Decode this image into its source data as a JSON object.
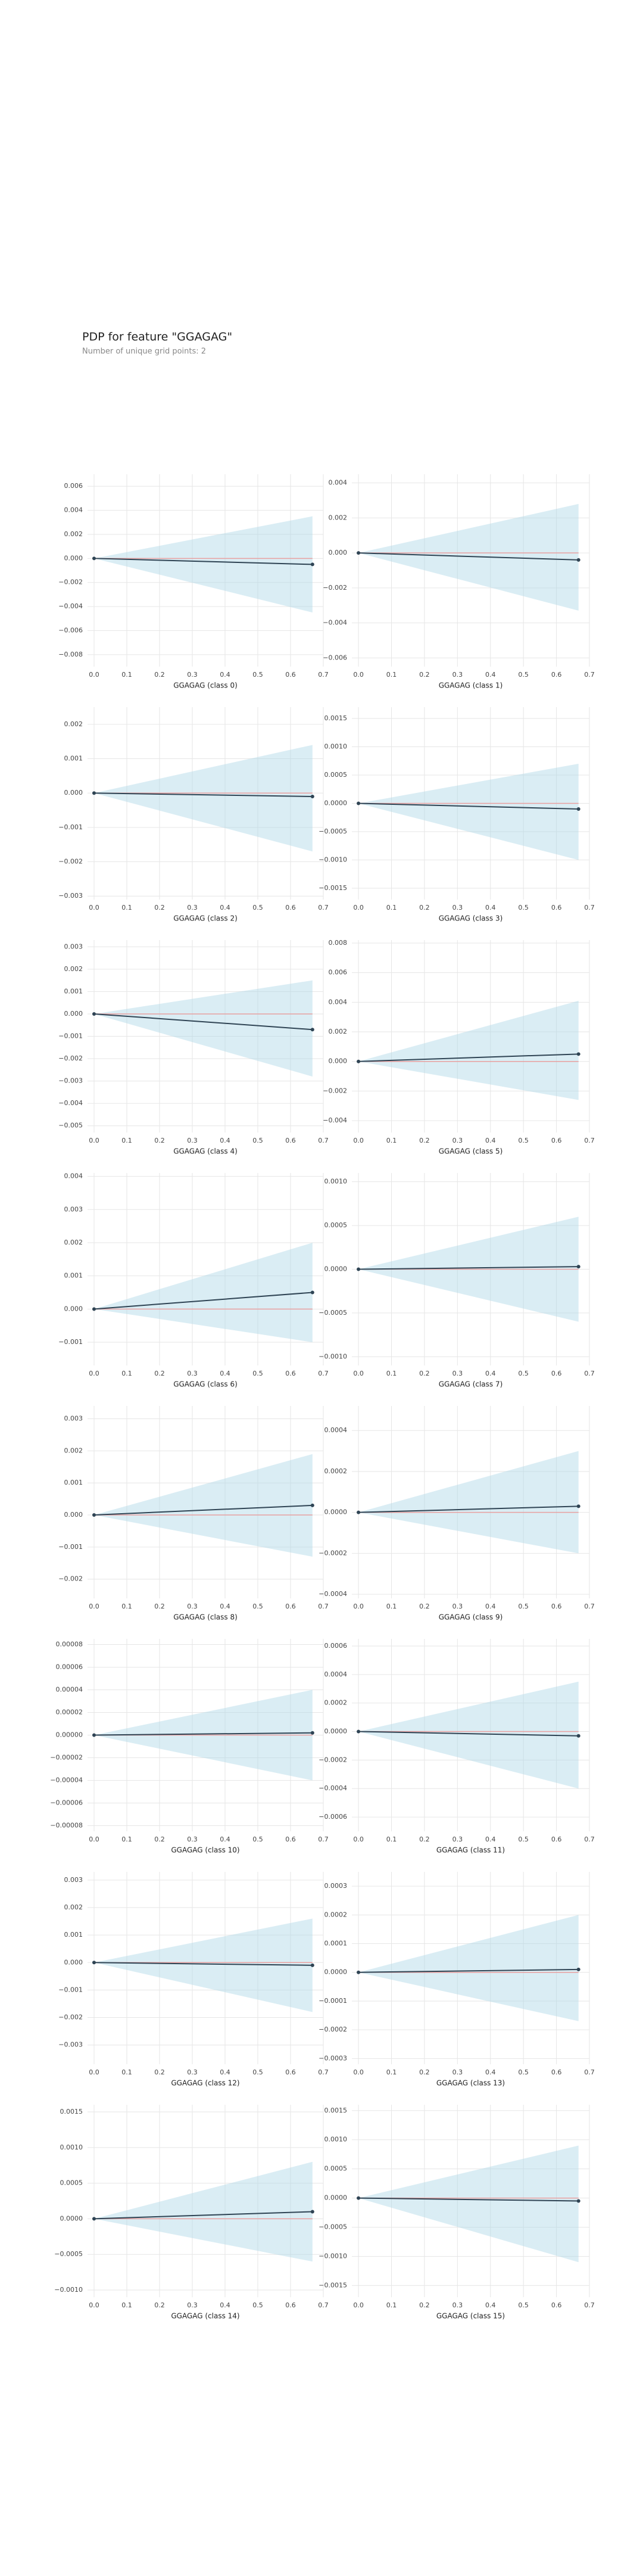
{
  "header": {
    "title": "PDP for feature \"GGAGAG\"",
    "subtitle": "Number of unique grid points: 2"
  },
  "chart_data": [
    {
      "type": "line",
      "x_label": "GGAGAG (class 0)",
      "x": [
        0,
        0.667
      ],
      "values": [
        0,
        -0.0005
      ],
      "upper": [
        0,
        0.0035
      ],
      "lower": [
        0,
        -0.0045
      ],
      "color": "#2f4454",
      "band_color": "#add8e6",
      "grid": true,
      "xlim": [
        -0.02,
        0.7
      ],
      "xticks": [
        {
          "value": 0,
          "label": "0.0"
        },
        0.1,
        0.2,
        0.3,
        0.4,
        0.5,
        0.6,
        0.7
      ],
      "ylim": [
        -0.009,
        0.007
      ],
      "yticks": [
        {
          "value": -0.008,
          "label": "−0.008"
        },
        {
          "value": -0.006,
          "label": "−0.006"
        },
        {
          "value": -0.004,
          "label": "−0.004"
        },
        {
          "value": -0.002,
          "label": "−0.002"
        },
        {
          "value": 0,
          "label": "0.000"
        },
        {
          "value": 0.002,
          "label": "0.002"
        },
        {
          "value": 0.004,
          "label": "0.004"
        },
        {
          "value": 0.006,
          "label": "0.006"
        }
      ]
    },
    {
      "type": "line",
      "x_label": "GGAGAG (class 1)",
      "x": [
        0,
        0.667
      ],
      "values": [
        0,
        -0.0004
      ],
      "upper": [
        0,
        0.0028
      ],
      "lower": [
        0,
        -0.0033
      ],
      "color": "#2f4454",
      "band_color": "#add8e6",
      "grid": true,
      "xlim": [
        -0.02,
        0.7
      ],
      "xticks": [
        {
          "value": 0,
          "label": "0.0"
        },
        0.1,
        0.2,
        0.3,
        0.4,
        0.5,
        0.6,
        0.7
      ],
      "ylim": [
        -0.0065,
        0.0045
      ],
      "yticks": [
        {
          "value": -0.006,
          "label": "−0.006"
        },
        {
          "value": -0.004,
          "label": "−0.004"
        },
        {
          "value": -0.002,
          "label": "−0.002"
        },
        {
          "value": 0,
          "label": "0.000"
        },
        {
          "value": 0.002,
          "label": "0.002"
        },
        {
          "value": 0.004,
          "label": "0.004"
        }
      ]
    },
    {
      "type": "line",
      "x_label": "GGAGAG (class 2)",
      "x": [
        0,
        0.667
      ],
      "values": [
        0,
        -0.0001
      ],
      "upper": [
        0,
        0.0014
      ],
      "lower": [
        0,
        -0.0017
      ],
      "color": "#2f4454",
      "band_color": "#add8e6",
      "grid": true,
      "xlim": [
        -0.02,
        0.7
      ],
      "xticks": [
        {
          "value": 0,
          "label": "0.0"
        },
        0.1,
        0.2,
        0.3,
        0.4,
        0.5,
        0.6,
        0.7
      ],
      "ylim": [
        -0.0031,
        0.0025
      ],
      "yticks": [
        {
          "value": -0.003,
          "label": "−0.003"
        },
        {
          "value": -0.002,
          "label": "−0.002"
        },
        {
          "value": -0.001,
          "label": "−0.001"
        },
        {
          "value": 0,
          "label": "0.000"
        },
        {
          "value": 0.001,
          "label": "0.001"
        },
        {
          "value": 0.002,
          "label": "0.002"
        }
      ]
    },
    {
      "type": "line",
      "x_label": "GGAGAG (class 3)",
      "x": [
        0,
        0.667
      ],
      "values": [
        0,
        -0.0001
      ],
      "upper": [
        0,
        0.0007
      ],
      "lower": [
        0,
        -0.001
      ],
      "color": "#2f4454",
      "band_color": "#add8e6",
      "grid": true,
      "xlim": [
        -0.02,
        0.7
      ],
      "xticks": [
        {
          "value": 0,
          "label": "0.0"
        },
        0.1,
        0.2,
        0.3,
        0.4,
        0.5,
        0.6,
        0.7
      ],
      "ylim": [
        -0.0017,
        0.0017
      ],
      "yticks": [
        {
          "value": -0.0015,
          "label": "−0.0015"
        },
        {
          "value": -0.001,
          "label": "−0.0010"
        },
        {
          "value": -0.0005,
          "label": "−0.0005"
        },
        {
          "value": 0,
          "label": "0.0000"
        },
        {
          "value": 0.0005,
          "label": "0.0005"
        },
        {
          "value": 0.001,
          "label": "0.0010"
        },
        {
          "value": 0.0015,
          "label": "0.0015"
        }
      ]
    },
    {
      "type": "line",
      "x_label": "GGAGAG (class 4)",
      "x": [
        0,
        0.667
      ],
      "values": [
        0,
        -0.0007
      ],
      "upper": [
        0,
        0.0015
      ],
      "lower": [
        0,
        -0.0028
      ],
      "color": "#2f4454",
      "band_color": "#add8e6",
      "grid": true,
      "xlim": [
        -0.02,
        0.7
      ],
      "xticks": [
        {
          "value": 0,
          "label": "0.0"
        },
        0.1,
        0.2,
        0.3,
        0.4,
        0.5,
        0.6,
        0.7
      ],
      "ylim": [
        -0.0053,
        0.0033
      ],
      "yticks": [
        {
          "value": -0.005,
          "label": "−0.005"
        },
        {
          "value": -0.004,
          "label": "−0.004"
        },
        {
          "value": -0.003,
          "label": "−0.003"
        },
        {
          "value": -0.002,
          "label": "−0.002"
        },
        {
          "value": -0.001,
          "label": "−0.001"
        },
        {
          "value": 0,
          "label": "0.000"
        },
        {
          "value": 0.001,
          "label": "0.001"
        },
        {
          "value": 0.002,
          "label": "0.002"
        },
        {
          "value": 0.003,
          "label": "0.003"
        }
      ]
    },
    {
      "type": "line",
      "x_label": "GGAGAG (class 5)",
      "x": [
        0,
        0.667
      ],
      "values": [
        0,
        0.0005
      ],
      "upper": [
        0,
        0.0041
      ],
      "lower": [
        0,
        -0.0026
      ],
      "color": "#2f4454",
      "band_color": "#add8e6",
      "grid": true,
      "xlim": [
        -0.02,
        0.7
      ],
      "xticks": [
        {
          "value": 0,
          "label": "0.0"
        },
        0.1,
        0.2,
        0.3,
        0.4,
        0.5,
        0.6,
        0.7
      ],
      "ylim": [
        -0.0048,
        0.0082
      ],
      "yticks": [
        {
          "value": -0.004,
          "label": "−0.004"
        },
        {
          "value": -0.002,
          "label": "−0.002"
        },
        {
          "value": 0,
          "label": "0.000"
        },
        {
          "value": 0.002,
          "label": "0.002"
        },
        {
          "value": 0.004,
          "label": "0.004"
        },
        {
          "value": 0.006,
          "label": "0.006"
        },
        {
          "value": 0.008,
          "label": "0.008"
        }
      ]
    },
    {
      "type": "line",
      "x_label": "GGAGAG (class 6)",
      "x": [
        0,
        0.667
      ],
      "values": [
        0,
        0.0005
      ],
      "upper": [
        0,
        0.002
      ],
      "lower": [
        0,
        -0.001
      ],
      "color": "#2f4454",
      "band_color": "#add8e6",
      "grid": true,
      "xlim": [
        -0.02,
        0.7
      ],
      "xticks": [
        {
          "value": 0,
          "label": "0.0"
        },
        0.1,
        0.2,
        0.3,
        0.4,
        0.5,
        0.6,
        0.7
      ],
      "ylim": [
        -0.0017,
        0.0041
      ],
      "yticks": [
        {
          "value": -0.001,
          "label": "−0.001"
        },
        {
          "value": 0,
          "label": "0.000"
        },
        {
          "value": 0.001,
          "label": "0.001"
        },
        {
          "value": 0.002,
          "label": "0.002"
        },
        {
          "value": 0.003,
          "label": "0.003"
        },
        {
          "value": 0.004,
          "label": "0.004"
        }
      ]
    },
    {
      "type": "line",
      "x_label": "GGAGAG (class 7)",
      "x": [
        0,
        0.667
      ],
      "values": [
        0,
        3e-05
      ],
      "upper": [
        0,
        0.0006
      ],
      "lower": [
        0,
        -0.0006
      ],
      "color": "#2f4454",
      "band_color": "#add8e6",
      "grid": true,
      "xlim": [
        -0.02,
        0.7
      ],
      "xticks": [
        {
          "value": 0,
          "label": "0.0"
        },
        0.1,
        0.2,
        0.3,
        0.4,
        0.5,
        0.6,
        0.7
      ],
      "ylim": [
        -0.0011,
        0.0011
      ],
      "yticks": [
        {
          "value": -0.001,
          "label": "−0.0010"
        },
        {
          "value": -0.0005,
          "label": "−0.0005"
        },
        {
          "value": 0,
          "label": "0.0000"
        },
        {
          "value": 0.0005,
          "label": "0.0005"
        },
        {
          "value": 0.001,
          "label": "0.0010"
        }
      ]
    },
    {
      "type": "line",
      "x_label": "GGAGAG (class 8)",
      "x": [
        0,
        0.667
      ],
      "values": [
        0,
        0.0003
      ],
      "upper": [
        0,
        0.0019
      ],
      "lower": [
        0,
        -0.0013
      ],
      "color": "#2f4454",
      "band_color": "#add8e6",
      "grid": true,
      "xlim": [
        -0.02,
        0.7
      ],
      "xticks": [
        {
          "value": 0,
          "label": "0.0"
        },
        0.1,
        0.2,
        0.3,
        0.4,
        0.5,
        0.6,
        0.7
      ],
      "ylim": [
        -0.0026,
        0.0034
      ],
      "yticks": [
        {
          "value": -0.002,
          "label": "−0.002"
        },
        {
          "value": -0.001,
          "label": "−0.001"
        },
        {
          "value": 0,
          "label": "0.000"
        },
        {
          "value": 0.001,
          "label": "0.001"
        },
        {
          "value": 0.002,
          "label": "0.002"
        },
        {
          "value": 0.003,
          "label": "0.003"
        }
      ]
    },
    {
      "type": "line",
      "x_label": "GGAGAG (class 9)",
      "x": [
        0,
        0.667
      ],
      "values": [
        0,
        3e-05
      ],
      "upper": [
        0,
        0.0003
      ],
      "lower": [
        0,
        -0.0002
      ],
      "color": "#2f4454",
      "band_color": "#add8e6",
      "grid": true,
      "xlim": [
        -0.02,
        0.7
      ],
      "xticks": [
        {
          "value": 0,
          "label": "0.0"
        },
        0.1,
        0.2,
        0.3,
        0.4,
        0.5,
        0.6,
        0.7
      ],
      "ylim": [
        -0.00042,
        0.00052
      ],
      "yticks": [
        {
          "value": -0.0004,
          "label": "−0.0004"
        },
        {
          "value": -0.0002,
          "label": "−0.0002"
        },
        {
          "value": 0,
          "label": "0.0000"
        },
        {
          "value": 0.0002,
          "label": "0.0002"
        },
        {
          "value": 0.0004,
          "label": "0.0004"
        }
      ]
    },
    {
      "type": "line",
      "x_label": "GGAGAG (class 10)",
      "x": [
        0,
        0.667
      ],
      "values": [
        0,
        2e-06
      ],
      "upper": [
        0,
        4e-05
      ],
      "lower": [
        0,
        -4e-05
      ],
      "color": "#2f4454",
      "band_color": "#add8e6",
      "grid": true,
      "xlim": [
        -0.02,
        0.7
      ],
      "xticks": [
        {
          "value": 0,
          "label": "0.0"
        },
        0.1,
        0.2,
        0.3,
        0.4,
        0.5,
        0.6,
        0.7
      ],
      "ylim": [
        -8.5e-05,
        8.5e-05
      ],
      "yticks": [
        {
          "value": -8e-05,
          "label": "−0.00008"
        },
        {
          "value": -6e-05,
          "label": "−0.00006"
        },
        {
          "value": -4e-05,
          "label": "−0.00004"
        },
        {
          "value": -2e-05,
          "label": "−0.00002"
        },
        {
          "value": 0,
          "label": "0.00000"
        },
        {
          "value": 2e-05,
          "label": "0.00002"
        },
        {
          "value": 4e-05,
          "label": "0.00004"
        },
        {
          "value": 6e-05,
          "label": "0.00006"
        },
        {
          "value": 8e-05,
          "label": "0.00008"
        }
      ]
    },
    {
      "type": "line",
      "x_label": "GGAGAG (class 11)",
      "x": [
        0,
        0.667
      ],
      "values": [
        0,
        -3e-05
      ],
      "upper": [
        0,
        0.00035
      ],
      "lower": [
        0,
        -0.0004
      ],
      "color": "#2f4454",
      "band_color": "#add8e6",
      "grid": true,
      "xlim": [
        -0.02,
        0.7
      ],
      "xticks": [
        {
          "value": 0,
          "label": "0.0"
        },
        0.1,
        0.2,
        0.3,
        0.4,
        0.5,
        0.6,
        0.7
      ],
      "ylim": [
        -0.0007,
        0.00065
      ],
      "yticks": [
        {
          "value": -0.0006,
          "label": "−0.0006"
        },
        {
          "value": -0.0004,
          "label": "−0.0004"
        },
        {
          "value": -0.0002,
          "label": "−0.0002"
        },
        {
          "value": 0,
          "label": "0.0000"
        },
        {
          "value": 0.0002,
          "label": "0.0002"
        },
        {
          "value": 0.0004,
          "label": "0.0004"
        },
        {
          "value": 0.0006,
          "label": "0.0006"
        }
      ]
    },
    {
      "type": "line",
      "x_label": "GGAGAG (class 12)",
      "x": [
        0,
        0.667
      ],
      "values": [
        0,
        -0.0001
      ],
      "upper": [
        0,
        0.0016
      ],
      "lower": [
        0,
        -0.0018
      ],
      "color": "#2f4454",
      "band_color": "#add8e6",
      "grid": true,
      "xlim": [
        -0.02,
        0.7
      ],
      "xticks": [
        {
          "value": 0,
          "label": "0.0"
        },
        0.1,
        0.2,
        0.3,
        0.4,
        0.5,
        0.6,
        0.7
      ],
      "ylim": [
        -0.0037,
        0.0033
      ],
      "yticks": [
        {
          "value": -0.003,
          "label": "−0.003"
        },
        {
          "value": -0.002,
          "label": "−0.002"
        },
        {
          "value": -0.001,
          "label": "−0.001"
        },
        {
          "value": 0,
          "label": "0.000"
        },
        {
          "value": 0.001,
          "label": "0.001"
        },
        {
          "value": 0.002,
          "label": "0.002"
        },
        {
          "value": 0.003,
          "label": "0.003"
        }
      ]
    },
    {
      "type": "line",
      "x_label": "GGAGAG (class 13)",
      "x": [
        0,
        0.667
      ],
      "values": [
        0,
        1e-05
      ],
      "upper": [
        0,
        0.0002
      ],
      "lower": [
        0,
        -0.00017
      ],
      "color": "#2f4454",
      "band_color": "#add8e6",
      "grid": true,
      "xlim": [
        -0.02,
        0.7
      ],
      "xticks": [
        {
          "value": 0,
          "label": "0.0"
        },
        0.1,
        0.2,
        0.3,
        0.4,
        0.5,
        0.6,
        0.7
      ],
      "ylim": [
        -0.00032,
        0.00035
      ],
      "yticks": [
        {
          "value": -0.0003,
          "label": "−0.0003"
        },
        {
          "value": -0.0002,
          "label": "−0.0002"
        },
        {
          "value": -0.0001,
          "label": "−0.0001"
        },
        {
          "value": 0,
          "label": "0.0000"
        },
        {
          "value": 0.0001,
          "label": "0.0001"
        },
        {
          "value": 0.0002,
          "label": "0.0002"
        },
        {
          "value": 0.0003,
          "label": "0.0003"
        }
      ]
    },
    {
      "type": "line",
      "x_label": "GGAGAG (class 14)",
      "x": [
        0,
        0.667
      ],
      "values": [
        0,
        0.0001
      ],
      "upper": [
        0,
        0.0008
      ],
      "lower": [
        0,
        -0.0006
      ],
      "color": "#2f4454",
      "band_color": "#add8e6",
      "grid": true,
      "xlim": [
        -0.02,
        0.7
      ],
      "xticks": [
        {
          "value": 0,
          "label": "0.0"
        },
        0.1,
        0.2,
        0.3,
        0.4,
        0.5,
        0.6,
        0.7
      ],
      "ylim": [
        -0.0011,
        0.0016
      ],
      "yticks": [
        {
          "value": -0.001,
          "label": "−0.0010"
        },
        {
          "value": -0.0005,
          "label": "−0.0005"
        },
        {
          "value": 0,
          "label": "0.0000"
        },
        {
          "value": 0.0005,
          "label": "0.0005"
        },
        {
          "value": 0.001,
          "label": "0.0010"
        },
        {
          "value": 0.0015,
          "label": "0.0015"
        }
      ]
    },
    {
      "type": "line",
      "x_label": "GGAGAG (class 15)",
      "x": [
        0,
        0.667
      ],
      "values": [
        0,
        -5e-05
      ],
      "upper": [
        0,
        0.0009
      ],
      "lower": [
        0,
        -0.0011
      ],
      "color": "#2f4454",
      "band_color": "#add8e6",
      "grid": true,
      "xlim": [
        -0.02,
        0.7
      ],
      "xticks": [
        {
          "value": 0,
          "label": "0.0"
        },
        0.1,
        0.2,
        0.3,
        0.4,
        0.5,
        0.6,
        0.7
      ],
      "ylim": [
        -0.0017,
        0.0016
      ],
      "yticks": [
        {
          "value": -0.0015,
          "label": "−0.0015"
        },
        {
          "value": -0.001,
          "label": "−0.0010"
        },
        {
          "value": -0.0005,
          "label": "−0.0005"
        },
        {
          "value": 0,
          "label": "0.0000"
        },
        {
          "value": 0.0005,
          "label": "0.0005"
        },
        {
          "value": 0.001,
          "label": "0.0010"
        },
        {
          "value": 0.0015,
          "label": "0.0015"
        }
      ]
    }
  ]
}
